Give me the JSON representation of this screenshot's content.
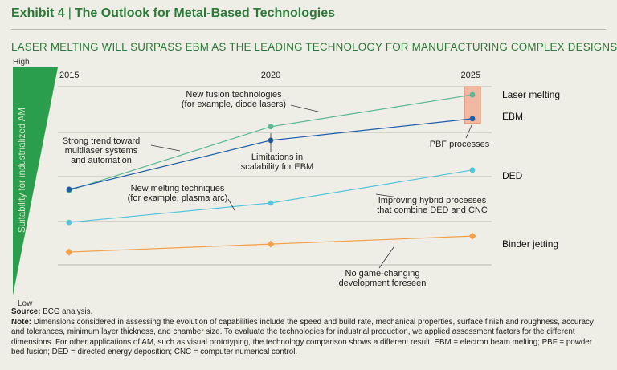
{
  "header": {
    "exhibit_label": "Exhibit 4",
    "separator": "|",
    "title": "The Outlook for Metal-Based Technologies"
  },
  "subtitle": "LASER MELTING WILL SURPASS EBM AS THE LEADING TECHNOLOGY FOR MANUFACTURING COMPLEX DESIGNS",
  "chart_data": {
    "type": "line",
    "title": "LASER MELTING WILL SURPASS EBM AS THE LEADING TECHNOLOGY FOR MANUFACTURING COMPLEX DESIGNS",
    "x": [
      2015,
      2020,
      2025
    ],
    "x_tick_labels": [
      "2015",
      "2020",
      "2025"
    ],
    "ylabel": "Suitability for industrialized AM",
    "y_high_label": "High",
    "y_low_label": "Low",
    "ylim": [
      0,
      10
    ],
    "series": [
      {
        "name": "Laser melting",
        "color": "#5bb894",
        "values": [
          4.6,
          7.4,
          8.8
        ]
      },
      {
        "name": "EBM",
        "color": "#1f5fa8",
        "values": [
          4.65,
          6.8,
          7.75
        ]
      },
      {
        "name": "DED",
        "color": "#55c4dc",
        "values": [
          3.2,
          4.05,
          5.5
        ]
      },
      {
        "name": "Binder jetting",
        "color": "#f3a04a",
        "values": [
          1.9,
          2.25,
          2.6
        ]
      }
    ],
    "highlight": {
      "label": "PBF processes",
      "x": 2025,
      "series": [
        "Laser melting",
        "EBM"
      ]
    },
    "annotations": [
      {
        "lines": [
          "New fusion technologies",
          "(for example, diode lasers)"
        ]
      },
      {
        "lines": [
          "Strong trend toward",
          "multilaser systems",
          "and automation"
        ]
      },
      {
        "lines": [
          "Limitations in",
          "scalability for EBM"
        ]
      },
      {
        "lines": [
          "New melting techniques",
          "(for example, plasma arc)"
        ]
      },
      {
        "lines": [
          "Improving hybrid processes",
          "that combine DED and CNC"
        ]
      },
      {
        "lines": [
          "No game-changing",
          "development foreseen"
        ]
      }
    ]
  },
  "notes": {
    "source_label": "Source:",
    "source_text": "BCG analysis.",
    "note_label": "Note:",
    "note_text": "Dimensions considered in assessing the evolution of capabilities include the speed and build rate, mechanical properties, surface finish and roughness, accuracy and tolerances, minimum layer thickness, and chamber size. To evaluate the technologies for industrial production, we applied assessment factors for the different dimensions. For other applications of AM, such as visual prototyping, the technology comparison shows a different result. EBM = electron beam melting; PBF = powder bed fusion; DED = directed energy deposition; CNC = computer numerical control."
  }
}
